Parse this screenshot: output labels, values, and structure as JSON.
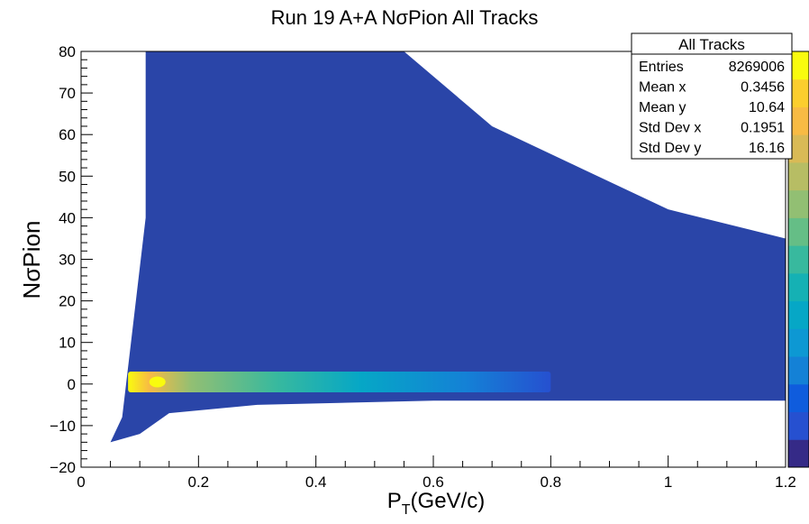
{
  "chart_data": {
    "type": "heatmap",
    "title": "Run 19 A+A NσPion All Tracks",
    "xlabel_main": "P",
    "xlabel_sub": "T",
    "xlabel_rest": "(GeV/c)",
    "ylabel": "NσPion",
    "xlim": [
      0,
      1.2
    ],
    "ylim": [
      -20,
      80
    ],
    "x_ticks": [
      "0",
      "0.2",
      "0.4",
      "0.6",
      "0.8",
      "1",
      "1.2"
    ],
    "y_ticks": [
      "−20",
      "−10",
      "0",
      "10",
      "20",
      "30",
      "40",
      "50",
      "60",
      "70",
      "80"
    ],
    "colorscale": [
      "#352a87",
      "#2650d0",
      "#0f5cdd",
      "#1481d6",
      "#0d98d3",
      "#06a7c6",
      "#15b1b4",
      "#38b99e",
      "#65be86",
      "#92bf73",
      "#b7bd64",
      "#d9ba56",
      "#f8bb44",
      "#fcce2e",
      "#f9fb0e"
    ],
    "background_color": "#2a45a8",
    "band": {
      "center_y": 0.5,
      "peak_x": 0.13,
      "x_extent": [
        0.08,
        0.8
      ],
      "y_halfwidth": 2.5
    },
    "distribution_edges": {
      "left_edge_x": [
        0.07,
        0.11
      ],
      "top_edge_points": [
        [
          0.15,
          80
        ],
        [
          0.55,
          80
        ],
        [
          0.7,
          62
        ],
        [
          0.85,
          52
        ],
        [
          1.0,
          42
        ],
        [
          1.2,
          35
        ]
      ],
      "bottom_edge_points": [
        [
          0.05,
          -14
        ],
        [
          0.1,
          -12
        ],
        [
          0.15,
          -7
        ],
        [
          0.3,
          -5
        ],
        [
          0.6,
          -4
        ],
        [
          1.2,
          -4
        ]
      ]
    }
  },
  "stats_box": {
    "title": "All Tracks",
    "rows": [
      {
        "label": "Entries",
        "value": "8269006"
      },
      {
        "label": "Mean x",
        "value": "0.3456"
      },
      {
        "label": "Mean y",
        "value": "10.64"
      },
      {
        "label": "Std Dev x",
        "value": "0.1951"
      },
      {
        "label": "Std Dev y",
        "value": "16.16"
      }
    ]
  }
}
